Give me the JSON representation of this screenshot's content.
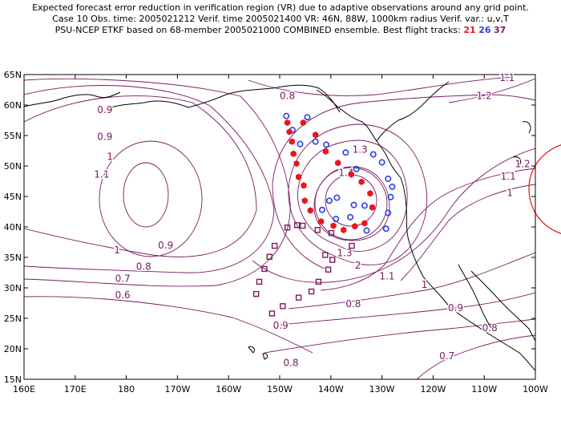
{
  "header": {
    "line1": "Expected forecast error reduction in verification region (VR) due to adaptive observations around any grid point.",
    "line2": "Case 10   Obs. time: 2005021212   Verif. time 2005021400   VR: 46N, 88W, 1000km radius   Verif. var.: u,v,T",
    "line3": "PSU-NCEP ETKF based on 68-member 2005021000 COMBINED ensemble.   Best flight tracks:",
    "track_a": "21",
    "track_b": "26",
    "track_c": "37"
  },
  "map": {
    "lat_labels": [
      "65N",
      "60N",
      "55N",
      "50N",
      "45N",
      "40N",
      "35N",
      "30N",
      "25N",
      "20N",
      "15N"
    ],
    "lon_labels": [
      "160E",
      "170E",
      "180",
      "170W",
      "160W",
      "150W",
      "140W",
      "130W",
      "120W",
      "110W",
      "100W"
    ],
    "contour_labels": [
      {
        "text": "0.9",
        "lon": 175.8,
        "lat": 59.2
      },
      {
        "text": "0.9",
        "lon": 175.8,
        "lat": 54.8
      },
      {
        "text": "1",
        "lon": 176.8,
        "lat": 51.5
      },
      {
        "text": "1.1",
        "lon": 175.2,
        "lat": 48.6
      },
      {
        "text": "1",
        "lon": 178.2,
        "lat": 36.2
      },
      {
        "text": "0.9",
        "lon": -172.3,
        "lat": 37.0
      },
      {
        "text": "0.8",
        "lon": -176.6,
        "lat": 33.5
      },
      {
        "text": "0.7",
        "lon": 179.3,
        "lat": 31.5
      },
      {
        "text": "0.6",
        "lon": 179.3,
        "lat": 28.8
      },
      {
        "text": "0.8",
        "lon": -148.5,
        "lat": 61.5
      },
      {
        "text": "1.1",
        "lon": -105.5,
        "lat": 64.5
      },
      {
        "text": "1.2",
        "lon": -110.0,
        "lat": 61.5
      },
      {
        "text": "1.3",
        "lon": -134.3,
        "lat": 52.7
      },
      {
        "text": "1.4",
        "lon": -137.0,
        "lat": 48.9
      },
      {
        "text": "1.3",
        "lon": -137.3,
        "lat": 35.7
      },
      {
        "text": "2",
        "lon": -134.7,
        "lat": 33.7
      },
      {
        "text": "1.1",
        "lon": -129.0,
        "lat": 31.9
      },
      {
        "text": "1.2",
        "lon": -102.5,
        "lat": 50.3
      },
      {
        "text": "1.1",
        "lon": -105.3,
        "lat": 48.3
      },
      {
        "text": "1",
        "lon": -105.0,
        "lat": 45.6
      },
      {
        "text": "1",
        "lon": -121.7,
        "lat": 30.5
      },
      {
        "text": "0.8",
        "lon": -135.6,
        "lat": 27.4
      },
      {
        "text": "0.9",
        "lon": -115.6,
        "lat": 26.7
      },
      {
        "text": "0.9",
        "lon": -149.8,
        "lat": 23.8
      },
      {
        "text": "0.8",
        "lon": -147.8,
        "lat": 17.7
      },
      {
        "text": "0.8",
        "lon": -108.9,
        "lat": 23.4
      },
      {
        "text": "0.7",
        "lon": -117.3,
        "lat": 18.8
      }
    ],
    "track_21": [
      [
        -148.5,
        57.1
      ],
      [
        -145.4,
        57.1
      ],
      [
        -143.0,
        55.1
      ],
      [
        -141.0,
        52.4
      ],
      [
        -138.6,
        50.5
      ],
      [
        -136.0,
        48.6
      ],
      [
        -134.0,
        47.4
      ],
      [
        -132.3,
        45.5
      ],
      [
        -131.9,
        43.2
      ],
      [
        -133.4,
        40.6
      ],
      [
        -135.3,
        40.1
      ],
      [
        -137.5,
        39.5
      ],
      [
        -139.5,
        40.2
      ],
      [
        -141.9,
        40.9
      ],
      [
        -144.0,
        42.7
      ],
      [
        -145.1,
        44.3
      ],
      [
        -145.3,
        46.8
      ],
      [
        -146.3,
        48.2
      ],
      [
        -146.7,
        50.4
      ],
      [
        -147.3,
        52.0
      ],
      [
        -147.6,
        54.0
      ],
      [
        -148.1,
        55.6
      ]
    ],
    "track_26": [
      [
        -148.7,
        58.2
      ],
      [
        -144.6,
        58.0
      ],
      [
        -147.5,
        55.9
      ],
      [
        -143.0,
        54.0
      ],
      [
        -146.0,
        53.6
      ],
      [
        -140.9,
        53.5
      ],
      [
        -137.1,
        52.2
      ],
      [
        -131.7,
        51.9
      ],
      [
        -130.0,
        50.6
      ],
      [
        -135.0,
        49.5
      ],
      [
        -128.8,
        47.9
      ],
      [
        -128.0,
        46.6
      ],
      [
        -128.3,
        44.9
      ],
      [
        -138.8,
        44.8
      ],
      [
        -140.3,
        44.3
      ],
      [
        -135.5,
        43.6
      ],
      [
        -133.4,
        43.5
      ],
      [
        -141.7,
        42.8
      ],
      [
        -128.8,
        42.3
      ],
      [
        -136.2,
        41.6
      ],
      [
        -139.0,
        41.3
      ],
      [
        -129.2,
        39.7
      ],
      [
        -133.0,
        39.4
      ]
    ],
    "track_37": [
      [
        -146.6,
        40.3
      ],
      [
        -145.5,
        40.2
      ],
      [
        -148.5,
        39.9
      ],
      [
        -142.6,
        39.5
      ],
      [
        -139.9,
        39.0
      ],
      [
        -151.0,
        36.9
      ],
      [
        -135.9,
        36.9
      ],
      [
        -152.0,
        35.1
      ],
      [
        -141.1,
        35.4
      ],
      [
        -139.7,
        34.6
      ],
      [
        -153.0,
        33.1
      ],
      [
        -140.5,
        33.0
      ],
      [
        -154.0,
        31.0
      ],
      [
        -142.4,
        31.0
      ],
      [
        -154.6,
        29.0
      ],
      [
        -143.8,
        29.4
      ],
      [
        -146.3,
        28.4
      ],
      [
        -149.4,
        27.0
      ],
      [
        -151.5,
        25.8
      ]
    ],
    "colors": {
      "contour": "#7a1a5f",
      "track_21": "#e8161c",
      "track_26": "#2a41e0",
      "track_37": "#7a1a5f",
      "verif_circle": "#e8161c"
    }
  }
}
